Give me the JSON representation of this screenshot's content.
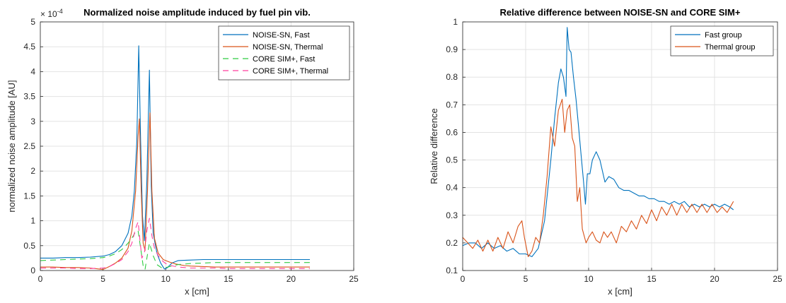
{
  "chart_data": [
    {
      "type": "line",
      "title": "Normalized noise amplitude induced by fuel pin vib.",
      "xlabel": "x [cm]",
      "ylabel": "normalized noise amplitude [AU]",
      "exponent_label": "× 10",
      "exponent_power": "-4",
      "xlim": [
        0,
        25
      ],
      "ylim": [
        0,
        5
      ],
      "xticks": [
        "0",
        "5",
        "10",
        "15",
        "20",
        "25"
      ],
      "yticks": [
        "0",
        "0.5",
        "1",
        "1.5",
        "2",
        "2.5",
        "3",
        "3.5",
        "4",
        "4.5",
        "5"
      ],
      "grid": true,
      "legend_position": "top-right",
      "series": [
        {
          "name": "NOISE-SN, Fast",
          "color": "#0072BD",
          "dash": "solid",
          "x": [
            0,
            1,
            2,
            3,
            4,
            5,
            5.5,
            6,
            6.5,
            7,
            7.3,
            7.5,
            7.7,
            7.85,
            8.0,
            8.15,
            8.3,
            8.5,
            8.7,
            8.85,
            9.0,
            9.3,
            9.6,
            9.9,
            10.1,
            10.5,
            11,
            12,
            13,
            14,
            15,
            16,
            17,
            18,
            19,
            20,
            21,
            21.5
          ],
          "values": [
            0.25,
            0.25,
            0.26,
            0.26,
            0.27,
            0.29,
            0.32,
            0.38,
            0.5,
            0.75,
            1.1,
            1.6,
            2.6,
            4.52,
            2.6,
            1.1,
            0.6,
            1.8,
            4.03,
            1.7,
            0.75,
            0.35,
            0.15,
            0.03,
            0.05,
            0.15,
            0.2,
            0.21,
            0.22,
            0.22,
            0.22,
            0.22,
            0.22,
            0.22,
            0.22,
            0.22,
            0.22,
            0.22
          ]
        },
        {
          "name": "NOISE-SN, Thermal",
          "color": "#D95319",
          "dash": "solid",
          "x": [
            0,
            1,
            2,
            3,
            4,
            4.7,
            5.0,
            5.5,
            6,
            6.5,
            7,
            7.3,
            7.6,
            7.8,
            7.9,
            8.05,
            8.2,
            8.35,
            8.55,
            8.75,
            8.9,
            9.1,
            9.4,
            9.8,
            10.3,
            10.8,
            11.5,
            12,
            13,
            14,
            15,
            16,
            17,
            18,
            19,
            20,
            21,
            21.5
          ],
          "values": [
            0.07,
            0.07,
            0.06,
            0.06,
            0.05,
            0.03,
            0.02,
            0.08,
            0.15,
            0.25,
            0.45,
            0.8,
            1.6,
            2.7,
            3.05,
            1.6,
            0.55,
            0.4,
            1.6,
            3.17,
            1.6,
            0.65,
            0.35,
            0.22,
            0.17,
            0.13,
            0.1,
            0.09,
            0.08,
            0.07,
            0.07,
            0.07,
            0.07,
            0.07,
            0.07,
            0.07,
            0.07,
            0.07
          ]
        },
        {
          "name": "CORE SIM+, Fast",
          "color": "#2ECC40",
          "dash": "8,6",
          "x": [
            0,
            1,
            2,
            3,
            4,
            5,
            5.5,
            6,
            6.5,
            7,
            7.3,
            7.6,
            7.8,
            8.0,
            8.2,
            8.35,
            8.5,
            8.7,
            9.0,
            9.3,
            9.7,
            10.2,
            10.6,
            11,
            12,
            13,
            14,
            15,
            16,
            17,
            18,
            19,
            20,
            21,
            21.5
          ],
          "values": [
            0.2,
            0.21,
            0.22,
            0.23,
            0.24,
            0.26,
            0.29,
            0.34,
            0.42,
            0.55,
            0.65,
            0.78,
            0.8,
            0.45,
            0.1,
            0.02,
            0.25,
            0.55,
            0.3,
            0.12,
            0.05,
            0.07,
            0.1,
            0.12,
            0.14,
            0.15,
            0.16,
            0.16,
            0.16,
            0.16,
            0.16,
            0.16,
            0.16,
            0.16,
            0.16
          ]
        },
        {
          "name": "CORE SIM+, Thermal",
          "color": "#FF3D9E",
          "dash": "8,6",
          "x": [
            0,
            1,
            2,
            3,
            4,
            5,
            5.5,
            6,
            6.5,
            7,
            7.3,
            7.6,
            7.8,
            7.95,
            8.1,
            8.3,
            8.5,
            8.7,
            8.9,
            9.1,
            9.4,
            9.7,
            10.0,
            10.4,
            11,
            12,
            13,
            14,
            15,
            16,
            17,
            18,
            19,
            20,
            21,
            21.5
          ],
          "values": [
            0.05,
            0.05,
            0.05,
            0.04,
            0.04,
            0.05,
            0.08,
            0.14,
            0.22,
            0.38,
            0.55,
            0.85,
            0.98,
            0.6,
            0.25,
            0.35,
            0.8,
            1.05,
            0.7,
            0.45,
            0.3,
            0.2,
            0.14,
            0.1,
            0.07,
            0.05,
            0.05,
            0.05,
            0.04,
            0.04,
            0.04,
            0.04,
            0.04,
            0.04,
            0.04,
            0.04
          ]
        }
      ]
    },
    {
      "type": "line",
      "title": "Relative difference between NOISE-SN and CORE SIM+",
      "xlabel": "x [cm]",
      "ylabel": "Relative difference",
      "xlim": [
        0,
        25
      ],
      "ylim": [
        0.1,
        1
      ],
      "xticks": [
        "0",
        "5",
        "10",
        "15",
        "20",
        "25"
      ],
      "yticks": [
        "0.1",
        "0.2",
        "0.3",
        "0.4",
        "0.5",
        "0.6",
        "0.7",
        "0.8",
        "0.9",
        "1"
      ],
      "grid": true,
      "legend_position": "top-right",
      "series": [
        {
          "name": "Fast group",
          "color": "#0072BD",
          "dash": "solid",
          "x": [
            0,
            0.5,
            1,
            1.5,
            2,
            2.5,
            3,
            3.5,
            4,
            4.5,
            5,
            5.5,
            6,
            6.5,
            7,
            7.3,
            7.6,
            7.8,
            8.0,
            8.2,
            8.3,
            8.45,
            8.6,
            8.8,
            9.0,
            9.2,
            9.4,
            9.6,
            9.75,
            9.9,
            10.1,
            10.3,
            10.6,
            10.9,
            11.3,
            11.6,
            12.0,
            12.4,
            12.8,
            13.2,
            13.6,
            14.0,
            14.4,
            14.8,
            15.2,
            15.6,
            16.0,
            16.4,
            16.8,
            17.2,
            17.6,
            18.0,
            18.4,
            18.8,
            19.2,
            19.6,
            20.0,
            20.4,
            20.8,
            21.2,
            21.5
          ],
          "values": [
            0.19,
            0.2,
            0.2,
            0.18,
            0.2,
            0.18,
            0.19,
            0.17,
            0.18,
            0.16,
            0.16,
            0.15,
            0.18,
            0.28,
            0.5,
            0.65,
            0.78,
            0.83,
            0.8,
            0.73,
            0.98,
            0.9,
            0.89,
            0.8,
            0.72,
            0.62,
            0.52,
            0.42,
            0.34,
            0.45,
            0.45,
            0.5,
            0.53,
            0.5,
            0.42,
            0.44,
            0.43,
            0.4,
            0.39,
            0.39,
            0.38,
            0.37,
            0.37,
            0.36,
            0.36,
            0.35,
            0.35,
            0.34,
            0.35,
            0.34,
            0.35,
            0.33,
            0.34,
            0.33,
            0.34,
            0.33,
            0.34,
            0.33,
            0.34,
            0.33,
            0.32
          ]
        },
        {
          "name": "Thermal group",
          "color": "#D95319",
          "dash": "solid",
          "x": [
            0,
            0.4,
            0.8,
            1.2,
            1.6,
            2.0,
            2.4,
            2.8,
            3.2,
            3.6,
            4.0,
            4.4,
            4.7,
            4.9,
            5.2,
            5.5,
            5.8,
            6.1,
            6.4,
            6.7,
            7.0,
            7.3,
            7.6,
            7.9,
            8.1,
            8.3,
            8.5,
            8.7,
            8.9,
            9.1,
            9.3,
            9.5,
            9.8,
            10.0,
            10.3,
            10.6,
            10.9,
            11.2,
            11.5,
            11.8,
            12.2,
            12.6,
            13.0,
            13.4,
            13.8,
            14.2,
            14.6,
            15.0,
            15.4,
            15.8,
            16.2,
            16.6,
            17.0,
            17.4,
            17.8,
            18.2,
            18.6,
            19.0,
            19.4,
            19.8,
            20.2,
            20.6,
            21.0,
            21.5
          ],
          "values": [
            0.22,
            0.2,
            0.18,
            0.21,
            0.17,
            0.21,
            0.17,
            0.22,
            0.18,
            0.24,
            0.2,
            0.26,
            0.28,
            0.22,
            0.15,
            0.17,
            0.22,
            0.2,
            0.3,
            0.44,
            0.62,
            0.55,
            0.68,
            0.72,
            0.6,
            0.68,
            0.7,
            0.58,
            0.55,
            0.35,
            0.4,
            0.25,
            0.2,
            0.22,
            0.24,
            0.21,
            0.2,
            0.24,
            0.22,
            0.24,
            0.2,
            0.26,
            0.24,
            0.28,
            0.25,
            0.3,
            0.27,
            0.32,
            0.28,
            0.33,
            0.3,
            0.34,
            0.3,
            0.34,
            0.31,
            0.34,
            0.31,
            0.34,
            0.31,
            0.34,
            0.31,
            0.33,
            0.31,
            0.35
          ]
        }
      ]
    }
  ]
}
